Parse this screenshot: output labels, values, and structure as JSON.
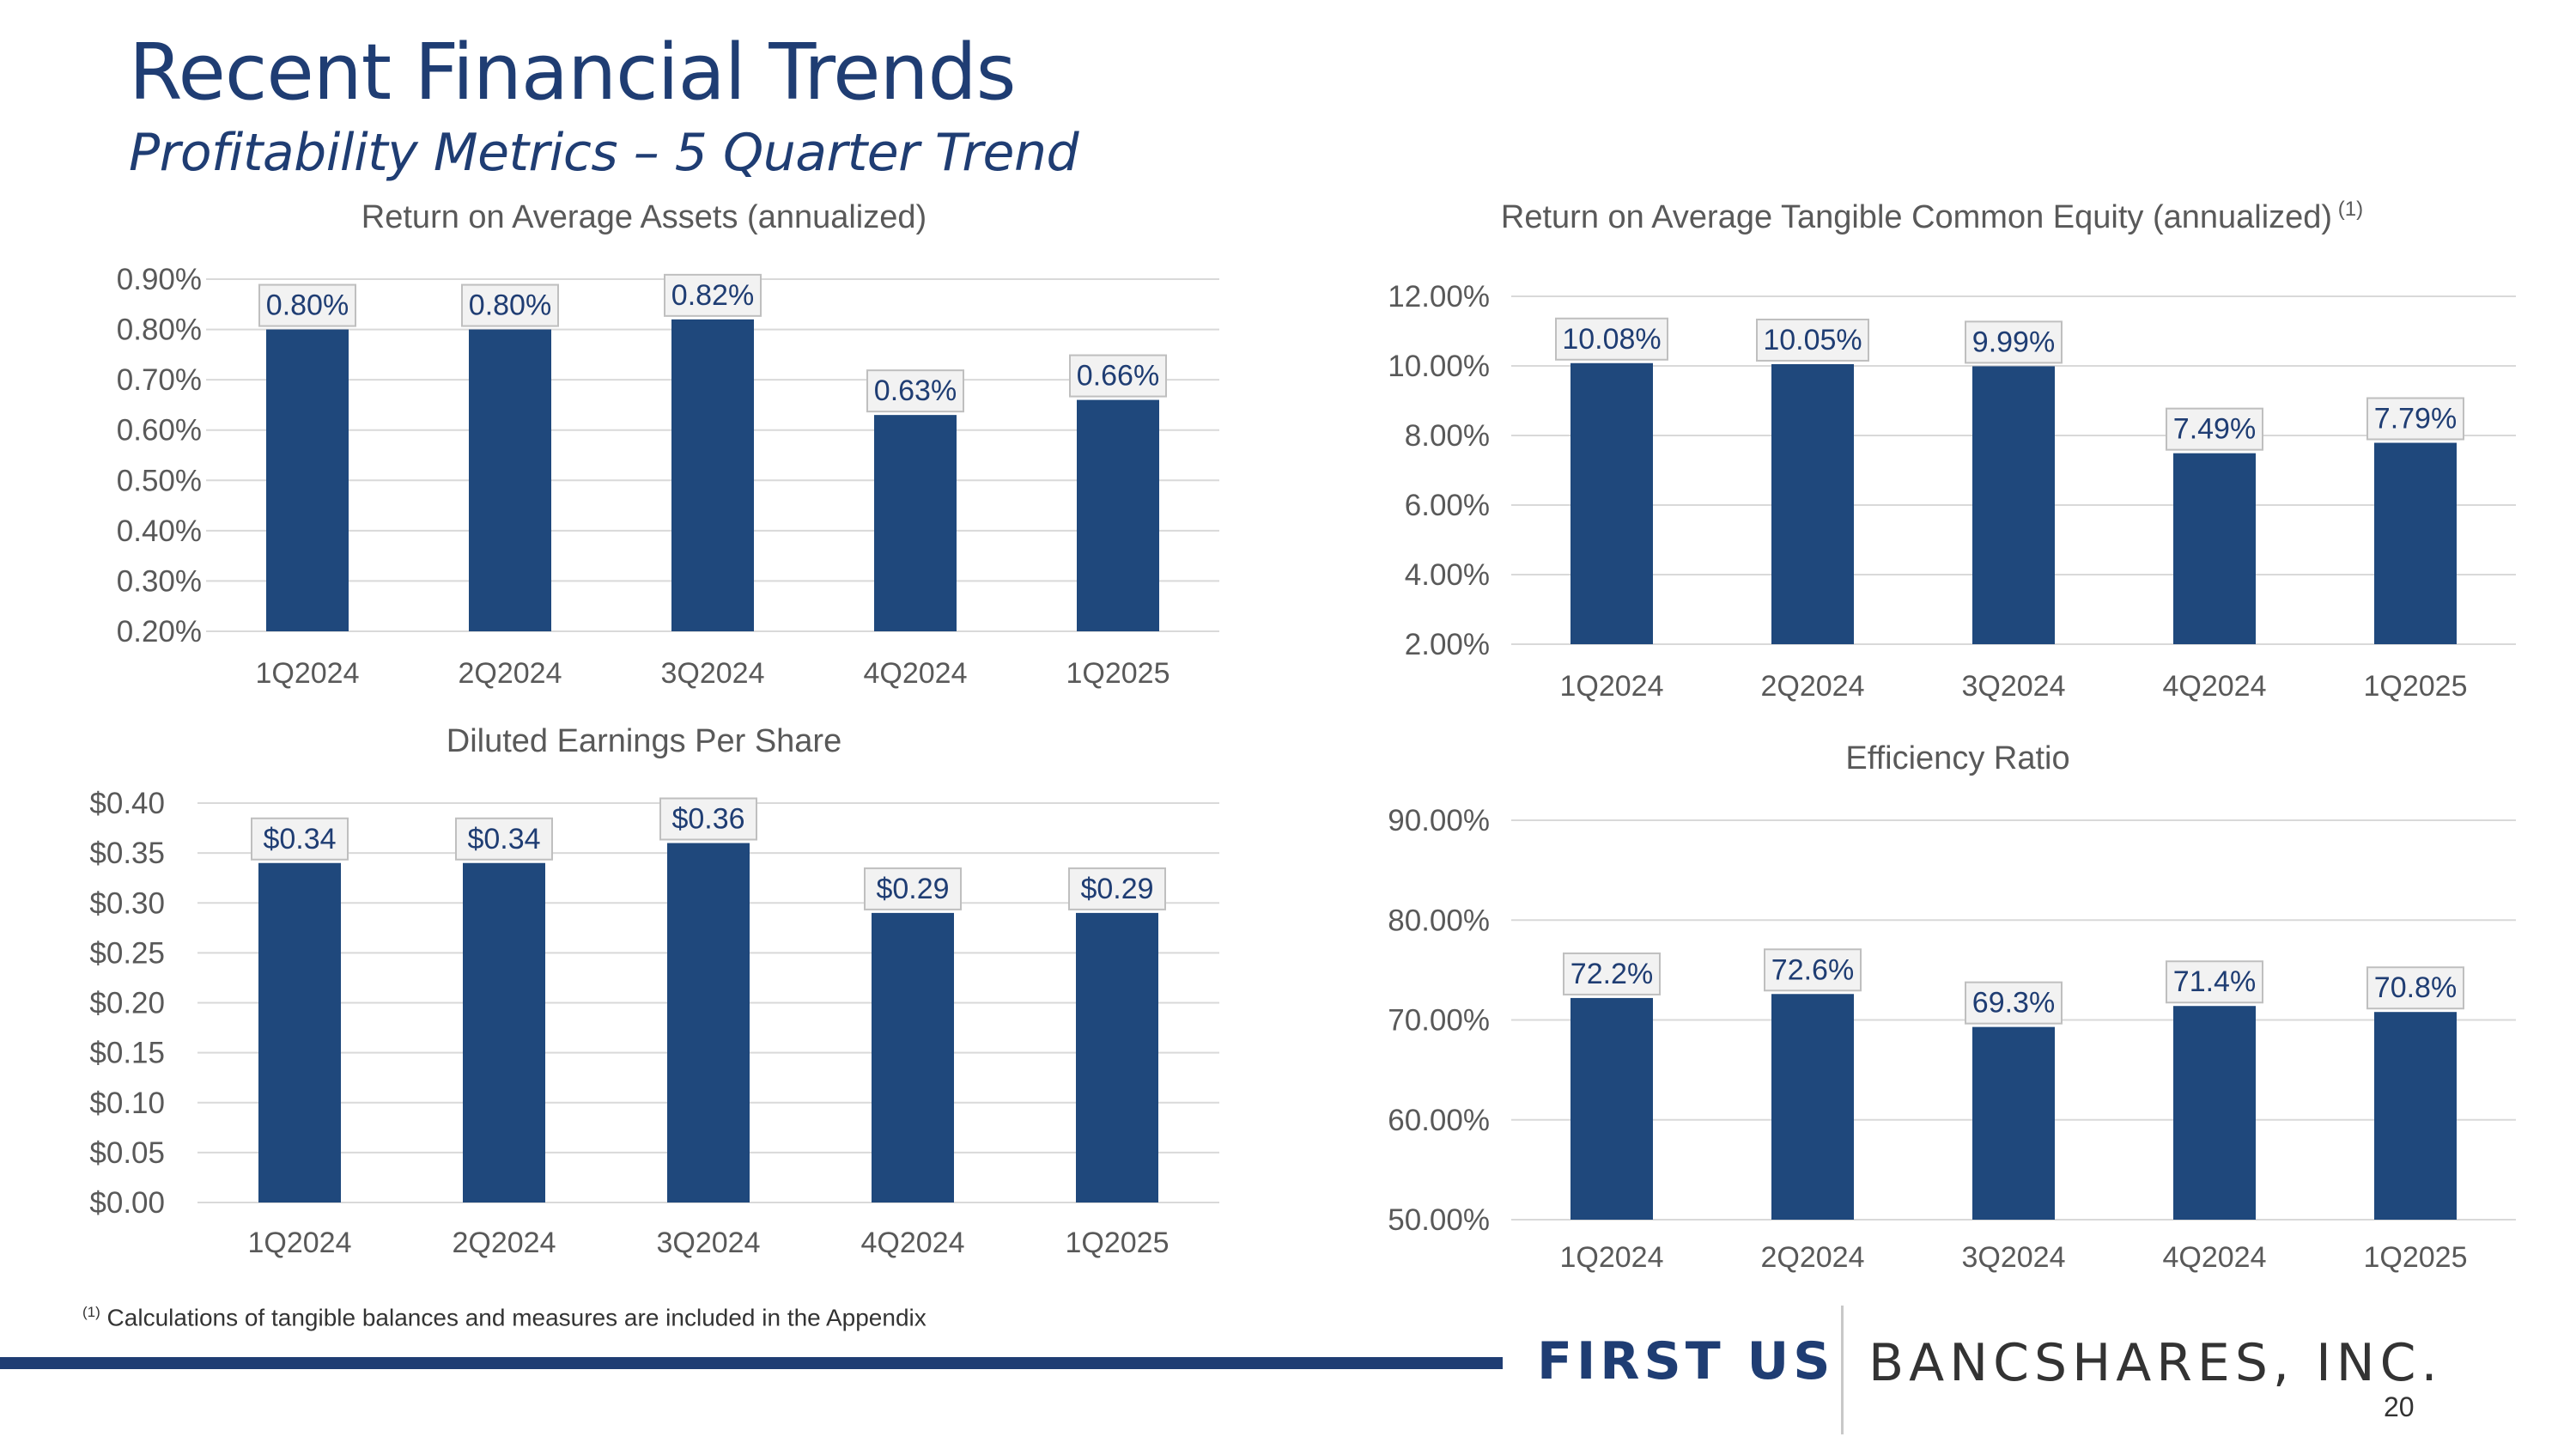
{
  "title": "Recent Financial Trends",
  "subtitle": "Profitability Metrics – 5 Quarter Trend",
  "footnote": {
    "marker": "(1)",
    "text": " Calculations of tangible balances and measures are included in the Appendix"
  },
  "brand": {
    "first": "FIRST US",
    "rest": "BANCSHARES, INC."
  },
  "page_number": "20",
  "colors": {
    "bar": "#1f487c",
    "title": "#1f3d73",
    "label_box": "#f2f2f2",
    "grid": "#d9d9d9"
  },
  "chart_data": [
    {
      "id": "roaa",
      "type": "bar",
      "title": "Return on Average Assets (annualized)",
      "categories": [
        "1Q2024",
        "2Q2024",
        "3Q2024",
        "4Q2024",
        "1Q2025"
      ],
      "values": [
        0.8,
        0.8,
        0.82,
        0.63,
        0.66
      ],
      "data_labels": [
        "0.80%",
        "0.80%",
        "0.82%",
        "0.63%",
        "0.66%"
      ],
      "ylim": [
        0.2,
        0.9
      ],
      "yticks": [
        0.2,
        0.3,
        0.4,
        0.5,
        0.6,
        0.7,
        0.8,
        0.9
      ],
      "ytick_labels": [
        "0.20%",
        "0.30%",
        "0.40%",
        "0.50%",
        "0.60%",
        "0.70%",
        "0.80%",
        "0.90%"
      ],
      "xlabel": "",
      "ylabel": ""
    },
    {
      "id": "rotce",
      "type": "bar",
      "title": "Return on Average Tangible Common Equity (annualized)",
      "title_note": "(1)",
      "categories": [
        "1Q2024",
        "2Q2024",
        "3Q2024",
        "4Q2024",
        "1Q2025"
      ],
      "values": [
        10.08,
        10.05,
        9.99,
        7.49,
        7.79
      ],
      "data_labels": [
        "10.08%",
        "10.05%",
        "9.99%",
        "7.49%",
        "7.79%"
      ],
      "ylim": [
        2.0,
        12.0
      ],
      "yticks": [
        2,
        4,
        6,
        8,
        10,
        12
      ],
      "ytick_labels": [
        "2.00%",
        "4.00%",
        "6.00%",
        "8.00%",
        "10.00%",
        "12.00%"
      ],
      "xlabel": "",
      "ylabel": ""
    },
    {
      "id": "eps",
      "type": "bar",
      "title": "Diluted Earnings Per Share",
      "categories": [
        "1Q2024",
        "2Q2024",
        "3Q2024",
        "4Q2024",
        "1Q2025"
      ],
      "values": [
        0.34,
        0.34,
        0.36,
        0.29,
        0.29
      ],
      "data_labels": [
        "$0.34",
        "$0.34",
        "$0.36",
        "$0.29",
        "$0.29"
      ],
      "ylim": [
        0.0,
        0.4
      ],
      "yticks": [
        0,
        0.05,
        0.1,
        0.15,
        0.2,
        0.25,
        0.3,
        0.35,
        0.4
      ],
      "ytick_labels": [
        "$0.00",
        "$0.05",
        "$0.10",
        "$0.15",
        "$0.20",
        "$0.25",
        "$0.30",
        "$0.35",
        "$0.40"
      ],
      "xlabel": "",
      "ylabel": ""
    },
    {
      "id": "efficiency",
      "type": "bar",
      "title": "Efficiency Ratio",
      "categories": [
        "1Q2024",
        "2Q2024",
        "3Q2024",
        "4Q2024",
        "1Q2025"
      ],
      "values": [
        72.2,
        72.6,
        69.3,
        71.4,
        70.8
      ],
      "data_labels": [
        "72.2%",
        "72.6%",
        "69.3%",
        "71.4%",
        "70.8%"
      ],
      "ylim": [
        50,
        90
      ],
      "yticks": [
        50,
        60,
        70,
        80,
        90
      ],
      "ytick_labels": [
        "50.00%",
        "60.00%",
        "70.00%",
        "80.00%",
        "90.00%"
      ],
      "xlabel": "",
      "ylabel": ""
    }
  ]
}
